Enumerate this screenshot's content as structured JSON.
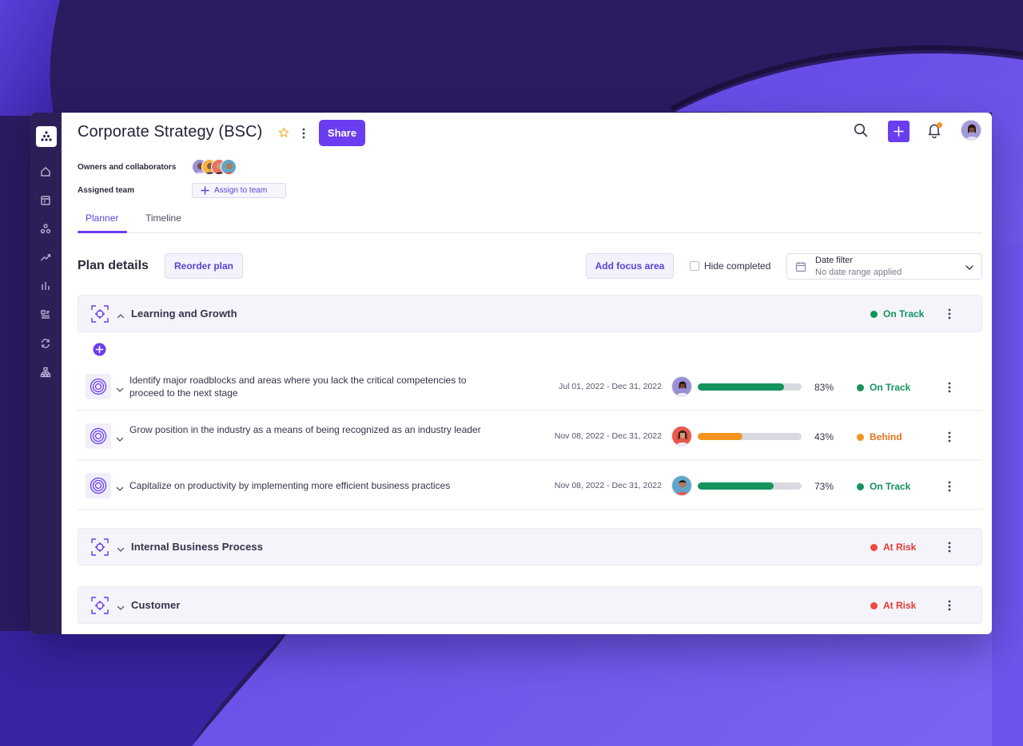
{
  "colors": {
    "accent": "#6a3df0",
    "on_track": "#14935d",
    "behind": "#f3941e",
    "at_risk": "#f0483e",
    "bar_track": "#d9d9e2"
  },
  "header": {
    "title": "Corporate Strategy (BSC)",
    "share_label": "Share",
    "owners_label": "Owners and collaborators",
    "team_label": "Assigned team",
    "assign_label": "Assign to team"
  },
  "tabs": [
    {
      "label": "Planner",
      "active": true
    },
    {
      "label": "Timeline",
      "active": false
    }
  ],
  "toolbar": {
    "plan_details": "Plan details",
    "reorder": "Reorder plan",
    "add_focus": "Add focus area",
    "hide_completed": "Hide completed",
    "date_filter_title": "Date filter",
    "date_filter_value": "No date range applied"
  },
  "focus_areas": [
    {
      "name": "Learning and Growth",
      "status": "On Track",
      "status_color": "#14935d"
    },
    {
      "name": "Internal Business Process",
      "status": "At Risk",
      "status_color": "#f0483e"
    },
    {
      "name": "Customer",
      "status": "At Risk",
      "status_color": "#f0483e"
    }
  ],
  "goals": [
    {
      "text": "Identify major roadblocks and areas where you lack the critical competencies to proceed to the next stage",
      "dates": "Jul 01, 2022 - Dec 31, 2022",
      "progress": 83,
      "progress_label": "83%",
      "status": "On Track",
      "status_color": "#14935d"
    },
    {
      "text": "Grow position in the industry as a means of being recognized as an industry leader",
      "dates": "Nov 08, 2022 - Dec 31, 2022",
      "progress": 43,
      "progress_label": "43%",
      "status": "Behind",
      "status_color": "#f3941e"
    },
    {
      "text": "Capitalize on productivity by implementing more efficient business practices",
      "dates": "Nov 08, 2022 - Dec 31, 2022",
      "progress": 73,
      "progress_label": "73%",
      "status": "On Track",
      "status_color": "#14935d"
    }
  ],
  "icons": {
    "rail": [
      "home-icon",
      "board-icon",
      "org-icon",
      "trend-icon",
      "chart-icon",
      "list-icon",
      "sync-icon",
      "hierarchy-icon"
    ],
    "top": [
      "search-icon",
      "plus-icon",
      "bell-icon"
    ]
  }
}
